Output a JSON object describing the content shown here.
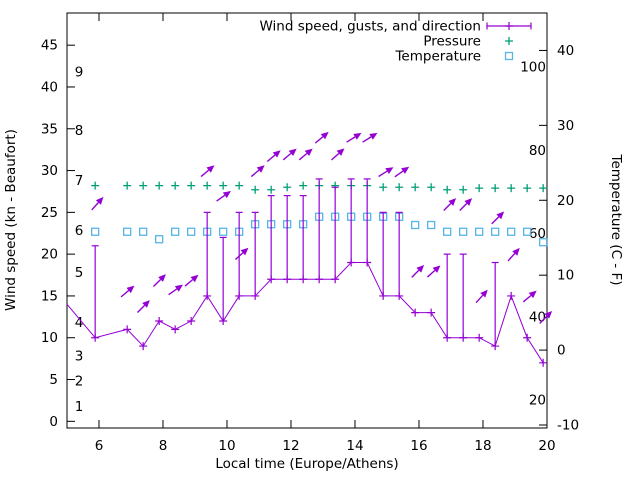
{
  "chart_data": {
    "type": "line",
    "title": "",
    "xlabel": "Local time (Europe/Athens)",
    "ylabel_left": "Wind speed (kn - Beaufort)",
    "ylabel_right": "Temperature (C - F)",
    "legend": {
      "wind": "Wind speed, gusts, and direction",
      "pressure": "Pressure",
      "temperature": "Temperature"
    },
    "colors": {
      "wind": "#9400d3",
      "pressure": "#009e73",
      "temperature": "#56b4e9",
      "axis": "#000000"
    },
    "x_range": [
      5,
      20
    ],
    "x_ticks": [
      6,
      8,
      10,
      12,
      14,
      16,
      18,
      20
    ],
    "left_axis_kn": {
      "range": [
        -0.8,
        48.85
      ],
      "ticks": [
        0,
        5,
        10,
        15,
        20,
        25,
        30,
        35,
        40,
        45
      ]
    },
    "right_axis_c": {
      "range": [
        -10.4,
        45.0
      ],
      "ticks": [
        -10,
        0,
        10,
        20,
        30,
        40
      ]
    },
    "beaufort_labels": [
      {
        "bft": "1",
        "kn": 1
      },
      {
        "bft": "2",
        "kn": 4
      },
      {
        "bft": "3",
        "kn": 7
      },
      {
        "bft": "4",
        "kn": 11
      },
      {
        "bft": "5",
        "kn": 17
      },
      {
        "bft": "6",
        "kn": 22
      },
      {
        "bft": "7",
        "kn": 28
      },
      {
        "bft": "8",
        "kn": 34
      },
      {
        "bft": "9",
        "kn": 41
      }
    ],
    "fahrenheit_labels": [
      "20",
      "40",
      "60",
      "80",
      "100"
    ],
    "wind_edge_point": {
      "t": 5.0,
      "kn": 14
    },
    "times": [
      5.88,
      6.88,
      7.38,
      7.88,
      8.38,
      8.88,
      9.38,
      9.88,
      10.38,
      10.88,
      11.38,
      11.88,
      12.38,
      12.88,
      13.38,
      13.88,
      14.38,
      14.88,
      15.38,
      15.88,
      16.38,
      16.88,
      17.38,
      17.88,
      18.38,
      18.88,
      19.38,
      19.88
    ],
    "wind_kn": [
      10,
      11,
      9,
      12,
      11,
      12,
      15,
      12,
      15,
      15,
      17,
      17,
      17,
      17,
      17,
      19,
      19,
      15,
      15,
      13,
      13,
      10,
      10,
      10,
      9,
      15,
      10,
      7
    ],
    "gust_kn": [
      21,
      null,
      null,
      null,
      null,
      null,
      25,
      22,
      25,
      25,
      27,
      27,
      27,
      29,
      28,
      29,
      29,
      25,
      25,
      null,
      null,
      20,
      20,
      null,
      19,
      null,
      null,
      null
    ],
    "pressure_plotted_on_kn_axis": [
      28.2,
      28.2,
      28.2,
      28.2,
      28.2,
      28.2,
      28.2,
      28.2,
      28.2,
      27.7,
      27.7,
      28.0,
      28.2,
      28.2,
      28.2,
      28.2,
      28.2,
      28.0,
      28.0,
      28.0,
      28.0,
      27.7,
      27.7,
      27.9,
      27.9,
      27.9,
      27.9,
      27.9
    ],
    "temperature_c": [
      15.8,
      15.8,
      15.8,
      14.8,
      15.8,
      15.8,
      15.8,
      15.8,
      15.8,
      16.8,
      16.8,
      16.8,
      16.8,
      17.8,
      17.8,
      17.8,
      17.8,
      17.8,
      17.8,
      16.7,
      16.7,
      15.8,
      15.8,
      15.8,
      15.8,
      15.8,
      15.8,
      14.4
    ],
    "direction_arrows": [
      {
        "t": 5.94,
        "kn": 26.0,
        "deg": 48
      },
      {
        "t": 6.88,
        "kn": 15.5,
        "deg": 40
      },
      {
        "t": 7.38,
        "kn": 13.7,
        "deg": 45
      },
      {
        "t": 7.88,
        "kn": 16.8,
        "deg": 45
      },
      {
        "t": 8.38,
        "kn": 15.7,
        "deg": 35
      },
      {
        "t": 8.88,
        "kn": 16.8,
        "deg": 40
      },
      {
        "t": 9.38,
        "kn": 29.9,
        "deg": 40
      },
      {
        "t": 9.88,
        "kn": 26.9,
        "deg": 35
      },
      {
        "t": 10.45,
        "kn": 20.0,
        "deg": 42
      },
      {
        "t": 10.95,
        "kn": 29.9,
        "deg": 40
      },
      {
        "t": 11.45,
        "kn": 31.7,
        "deg": 40
      },
      {
        "t": 11.95,
        "kn": 31.9,
        "deg": 40
      },
      {
        "t": 12.45,
        "kn": 31.9,
        "deg": 40
      },
      {
        "t": 12.95,
        "kn": 33.9,
        "deg": 40
      },
      {
        "t": 13.45,
        "kn": 31.9,
        "deg": 42
      },
      {
        "t": 13.95,
        "kn": 33.9,
        "deg": 32
      },
      {
        "t": 14.45,
        "kn": 33.9,
        "deg": 32
      },
      {
        "t": 14.95,
        "kn": 29.8,
        "deg": 32
      },
      {
        "t": 15.45,
        "kn": 29.8,
        "deg": 35
      },
      {
        "t": 15.95,
        "kn": 17.9,
        "deg": 45
      },
      {
        "t": 16.45,
        "kn": 17.9,
        "deg": 42
      },
      {
        "t": 16.95,
        "kn": 25.9,
        "deg": 45
      },
      {
        "t": 17.45,
        "kn": 25.9,
        "deg": 45
      },
      {
        "t": 17.95,
        "kn": 14.9,
        "deg": 48
      },
      {
        "t": 18.45,
        "kn": 24.3,
        "deg": 45
      },
      {
        "t": 18.95,
        "kn": 19.9,
        "deg": 48
      },
      {
        "t": 19.45,
        "kn": 14.9,
        "deg": 40
      },
      {
        "t": 19.95,
        "kn": 12.4,
        "deg": 45
      }
    ]
  }
}
